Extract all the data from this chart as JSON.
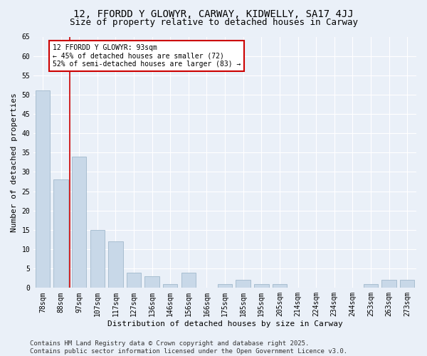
{
  "title": "12, FFORDD Y GLOWYR, CARWAY, KIDWELLY, SA17 4JJ",
  "subtitle": "Size of property relative to detached houses in Carway",
  "xlabel": "Distribution of detached houses by size in Carway",
  "ylabel": "Number of detached properties",
  "categories": [
    "78sqm",
    "88sqm",
    "97sqm",
    "107sqm",
    "117sqm",
    "127sqm",
    "136sqm",
    "146sqm",
    "156sqm",
    "166sqm",
    "175sqm",
    "185sqm",
    "195sqm",
    "205sqm",
    "214sqm",
    "224sqm",
    "234sqm",
    "244sqm",
    "253sqm",
    "263sqm",
    "273sqm"
  ],
  "values": [
    51,
    28,
    34,
    15,
    12,
    4,
    3,
    1,
    4,
    0,
    1,
    2,
    1,
    1,
    0,
    0,
    0,
    0,
    1,
    2,
    2
  ],
  "bar_color": "#c8d8e8",
  "bar_edge_color": "#a0b8cc",
  "vline_color": "#cc0000",
  "annotation_text": "12 FFORDD Y GLOWYR: 93sqm\n← 45% of detached houses are smaller (72)\n52% of semi-detached houses are larger (83) →",
  "annotation_box_color": "#ffffff",
  "annotation_box_edge_color": "#cc0000",
  "ylim": [
    0,
    65
  ],
  "yticks": [
    0,
    5,
    10,
    15,
    20,
    25,
    30,
    35,
    40,
    45,
    50,
    55,
    60,
    65
  ],
  "bg_color": "#eaf0f8",
  "plot_bg_color": "#eaf0f8",
  "grid_color": "#ffffff",
  "footer": "Contains HM Land Registry data © Crown copyright and database right 2025.\nContains public sector information licensed under the Open Government Licence v3.0.",
  "title_fontsize": 10,
  "subtitle_fontsize": 9,
  "axis_label_fontsize": 8,
  "tick_fontsize": 7,
  "footer_fontsize": 6.5
}
